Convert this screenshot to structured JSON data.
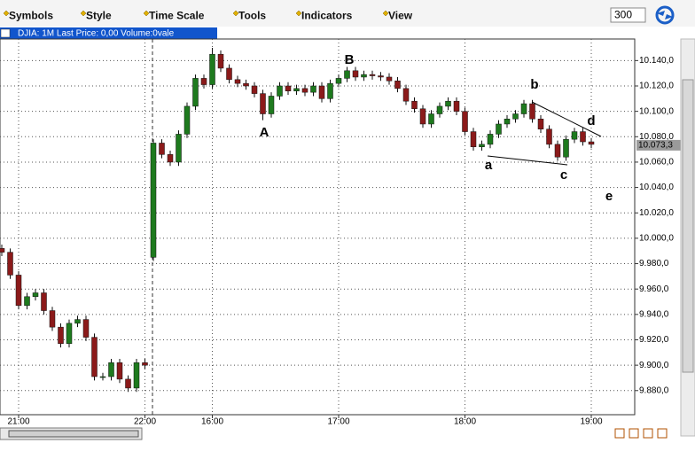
{
  "toolbar": {
    "menus": [
      "Symbols",
      "Style",
      "Time Scale",
      "Tools",
      "Indicators",
      "View"
    ],
    "interval": "300"
  },
  "chart_data": {
    "type": "candlestick",
    "title": "DJIA: 1M Last Price: 0,00 Volume:0vale",
    "x": [
      "20:52",
      "20:56",
      "21:00",
      "21:04",
      "21:08",
      "21:12",
      "21:16",
      "21:20",
      "21:24",
      "21:28",
      "21:32",
      "21:36",
      "21:40",
      "21:44",
      "21:48",
      "21:52",
      "21:56",
      "22:00",
      "15:32",
      "15:36",
      "15:40",
      "15:44",
      "15:48",
      "15:52",
      "15:56",
      "16:00",
      "16:04",
      "16:08",
      "16:12",
      "16:16",
      "16:20",
      "16:24",
      "16:28",
      "16:32",
      "16:36",
      "16:40",
      "16:44",
      "16:48",
      "16:52",
      "16:56",
      "17:00",
      "17:04",
      "17:08",
      "17:12",
      "17:16",
      "17:20",
      "17:24",
      "17:28",
      "17:32",
      "17:36",
      "17:40",
      "17:44",
      "17:48",
      "17:52",
      "17:56",
      "18:00",
      "18:04",
      "18:08",
      "18:12",
      "18:16",
      "18:20",
      "18:24",
      "18:28",
      "18:32",
      "18:36",
      "18:40",
      "18:44",
      "18:48",
      "18:52",
      "18:56",
      "19:00"
    ],
    "open": [
      9992,
      9989,
      9971,
      9947,
      9954,
      9957,
      9943,
      9930,
      9917,
      9933,
      9936,
      9922,
      9891,
      9891,
      9902,
      9889,
      9882,
      9902,
      9985,
      10075,
      10066,
      10060,
      10082,
      10104,
      10126,
      10121,
      10145,
      10134,
      10125,
      10122,
      10120,
      10114,
      10098,
      10112,
      10120,
      10116,
      10118,
      10115,
      10120,
      10110,
      10122,
      10126,
      10132,
      10127,
      10129,
      10128,
      10127,
      10124,
      10118,
      10108,
      10102,
      10090,
      10098,
      10104,
      10108,
      10100,
      10084,
      10072,
      10074,
      10082,
      10090,
      10094,
      10098,
      10106,
      10094,
      10086,
      10074,
      10064,
      10078,
      10084,
      10076
    ],
    "high": [
      9995,
      9992,
      9974,
      9957,
      9960,
      9960,
      9946,
      9933,
      9936,
      9939,
      9939,
      9925,
      9894,
      9905,
      9905,
      9892,
      9905,
      9905,
      10078,
      10078,
      10069,
      10085,
      10107,
      10129,
      10129,
      10150,
      10148,
      10137,
      10128,
      10125,
      10123,
      10117,
      10115,
      10123,
      10123,
      10121,
      10121,
      10123,
      10123,
      10125,
      10129,
      10135,
      10135,
      10132,
      10132,
      10131,
      10130,
      10127,
      10121,
      10111,
      10105,
      10101,
      10107,
      10111,
      10111,
      10103,
      10087,
      10077,
      10085,
      10093,
      10097,
      10101,
      10109,
      10109,
      10097,
      10089,
      10077,
      10081,
      10087,
      10087,
      10079
    ],
    "low": [
      9986,
      9968,
      9944,
      9944,
      9951,
      9940,
      9927,
      9914,
      9914,
      9930,
      9919,
      9888,
      9888,
      9888,
      9886,
      9879,
      9879,
      9897,
      9982,
      10063,
      10057,
      10057,
      10079,
      10101,
      10118,
      10118,
      10131,
      10122,
      10119,
      10117,
      10111,
      10093,
      10095,
      10109,
      10113,
      10113,
      10112,
      10112,
      10107,
      10107,
      10119,
      10123,
      10124,
      10124,
      10125,
      10124,
      10121,
      10115,
      10105,
      10099,
      10087,
      10087,
      10095,
      10101,
      10097,
      10081,
      10069,
      10069,
      10071,
      10079,
      10087,
      10091,
      10095,
      10091,
      10083,
      10071,
      10061,
      10061,
      10075,
      10073,
      10071
    ],
    "close": [
      9989,
      9971,
      9947,
      9954,
      9957,
      9943,
      9930,
      9917,
      9933,
      9936,
      9922,
      9891,
      9891,
      9902,
      9889,
      9882,
      9902,
      9900,
      10075,
      10066,
      10060,
      10082,
      10104,
      10126,
      10121,
      10145,
      10134,
      10125,
      10122,
      10120,
      10114,
      10098,
      10112,
      10120,
      10116,
      10118,
      10115,
      10120,
      10110,
      10122,
      10126,
      10132,
      10127,
      10129,
      10128,
      10127,
      10124,
      10118,
      10108,
      10102,
      10090,
      10098,
      10104,
      10108,
      10100,
      10084,
      10072,
      10074,
      10082,
      10090,
      10094,
      10098,
      10106,
      10094,
      10086,
      10074,
      10064,
      10078,
      10084,
      10076,
      10074
    ],
    "up_color": "#1e7a1e",
    "down_color": "#8b1a1a",
    "ylim": [
      9861,
      10157
    ],
    "yticks": [
      {
        "value": 9880,
        "label": "9.880,0"
      },
      {
        "value": 9900,
        "label": "9.900,0"
      },
      {
        "value": 9920,
        "label": "9.920,0"
      },
      {
        "value": 9940,
        "label": "9.940,0"
      },
      {
        "value": 9960,
        "label": "9.960,0"
      },
      {
        "value": 9980,
        "label": "9.980,0"
      },
      {
        "value": 10000,
        "label": "10.000,0"
      },
      {
        "value": 10020,
        "label": "10.020,0"
      },
      {
        "value": 10040,
        "label": "10.040,0"
      },
      {
        "value": 10060,
        "label": "10.060,0"
      },
      {
        "value": 10080,
        "label": "10.080,0"
      },
      {
        "value": 10100,
        "label": "10.100,0"
      },
      {
        "value": 10120,
        "label": "10.120,0"
      },
      {
        "value": 10140,
        "label": "10.140,0"
      }
    ],
    "xticks": [
      "21:00",
      "22:00",
      "16:00",
      "17:00",
      "18:00",
      "19:00"
    ],
    "last_price": {
      "value": 10073.3,
      "label": "10.073,3"
    },
    "annotations": [
      "A",
      "B",
      "a",
      "b",
      "c",
      "d",
      "e"
    ],
    "grid": true
  }
}
